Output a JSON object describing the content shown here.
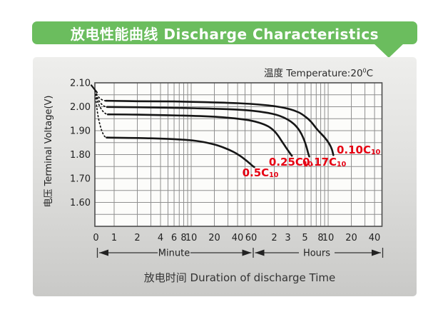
{
  "header": {
    "title": "放电性能曲线 Discharge Characteristics"
  },
  "condition": {
    "text_main": "温度 Temperature:20",
    "degree_sup": "0",
    "unit": "C"
  },
  "segments": {
    "minute": "Minute",
    "hours": "Hours"
  },
  "colors": {
    "banner_green": "#6bbd5e",
    "panel_top": "#eeeeec",
    "panel_bottom": "#c9c9c7",
    "plot_bg": "#fcfcfa",
    "grid": "#8f8f8f",
    "axis": "#4d4d4d",
    "curve": "#161616",
    "accent_red": "#e60012",
    "text": "#2b2b2b"
  },
  "chart_data": {
    "type": "line",
    "title": "放电性能曲线 Discharge Characteristics",
    "condition": "温度 Temperature:20°C",
    "ylabel": "电压 Terminal Voltage(V)",
    "xlabel": "放电时间 Duration of discharge Time",
    "x_scale": "logarithmic discharge time; left segment labeled in minutes (0–60), right segment labeled in hours (1–50)",
    "ylim": [
      1.5,
      2.1
    ],
    "y_ticks": [
      2.1,
      2.0,
      1.9,
      1.8,
      1.7,
      1.6
    ],
    "y_grid_step_v": 0.05,
    "grid": true,
    "legend_position": "red labels on curves",
    "x_ticks": [
      {
        "label": "0",
        "t_min": 0
      },
      {
        "label": "1",
        "t_min": 1
      },
      {
        "label": "2",
        "t_min": 2
      },
      {
        "label": "4",
        "t_min": 4
      },
      {
        "label": "6",
        "t_min": 6
      },
      {
        "label": "8",
        "t_min": 8
      },
      {
        "label": "10",
        "t_min": 10
      },
      {
        "label": "20",
        "t_min": 20
      },
      {
        "label": "40",
        "t_min": 40
      },
      {
        "label": "60",
        "t_min": 60
      },
      {
        "label": "2",
        "t_min": 120
      },
      {
        "label": "3",
        "t_min": 180
      },
      {
        "label": "5",
        "t_min": 300
      },
      {
        "label": "8",
        "t_min": 480
      },
      {
        "label": "10",
        "t_min": 600
      },
      {
        "label": "20",
        "t_min": 1200
      },
      {
        "label": "40",
        "t_min": 2400
      }
    ],
    "x_gridlines_minutes": [
      1,
      2,
      3,
      4,
      5,
      6,
      7,
      8,
      9,
      10,
      20,
      30,
      40,
      50,
      60,
      120,
      180,
      240,
      300,
      360,
      420,
      480,
      540,
      600,
      1200,
      1800,
      2400,
      3000
    ],
    "open_circuit_point": {
      "t_min": 0.57,
      "v": 2.067
    },
    "series": [
      {
        "name": "0.10C10",
        "label": {
          "main": "0.10C",
          "sub": "10"
        },
        "label_anchor": {
          "t_min": 774,
          "v": 1.837
        },
        "points": [
          [
            0.78,
            2.025
          ],
          [
            2,
            2.023
          ],
          [
            6,
            2.022
          ],
          [
            15,
            2.019
          ],
          [
            40,
            2.015
          ],
          [
            90,
            2.007
          ],
          [
            134,
            2.0
          ],
          [
            190,
            1.99
          ],
          [
            250,
            1.976
          ],
          [
            305,
            1.958
          ],
          [
            360,
            1.937
          ],
          [
            435,
            1.904
          ],
          [
            545,
            1.87
          ],
          [
            620,
            1.845
          ],
          [
            670,
            1.822
          ],
          [
            700,
            1.798
          ]
        ]
      },
      {
        "name": "0.17C10",
        "label": {
          "main": "0.17C",
          "sub": "10"
        },
        "label_anchor": {
          "t_min": 278,
          "v": 1.787
        },
        "points": [
          [
            0.81,
            1.999
          ],
          [
            2,
            1.998
          ],
          [
            10,
            1.994
          ],
          [
            30,
            1.99
          ],
          [
            60,
            1.984
          ],
          [
            100,
            1.974
          ],
          [
            140,
            1.962
          ],
          [
            180,
            1.946
          ],
          [
            215,
            1.928
          ],
          [
            245,
            1.908
          ],
          [
            270,
            1.886
          ],
          [
            295,
            1.858
          ],
          [
            315,
            1.83
          ],
          [
            330,
            1.806
          ],
          [
            341,
            1.792
          ]
        ]
      },
      {
        "name": "0.25C10",
        "label": {
          "main": "0.25C",
          "sub": "10"
        },
        "label_anchor": {
          "t_min": 102,
          "v": 1.787
        },
        "points": [
          [
            0.83,
            1.968
          ],
          [
            2,
            1.967
          ],
          [
            10,
            1.962
          ],
          [
            25,
            1.956
          ],
          [
            50,
            1.946
          ],
          [
            75,
            1.934
          ],
          [
            100,
            1.918
          ],
          [
            120,
            1.898
          ],
          [
            135,
            1.878
          ],
          [
            150,
            1.856
          ],
          [
            165,
            1.836
          ],
          [
            180,
            1.818
          ],
          [
            195,
            1.802
          ],
          [
            203,
            1.795
          ]
        ]
      },
      {
        "name": "0.5C10",
        "label": {
          "main": "0.5C",
          "sub": "10"
        },
        "label_anchor": {
          "t_min": 46,
          "v": 1.742
        },
        "points": [
          [
            0.8,
            1.871
          ],
          [
            3,
            1.868
          ],
          [
            8,
            1.862
          ],
          [
            13,
            1.855
          ],
          [
            20,
            1.842
          ],
          [
            27,
            1.828
          ],
          [
            35,
            1.812
          ],
          [
            43,
            1.795
          ],
          [
            51,
            1.777
          ],
          [
            58,
            1.762
          ],
          [
            63,
            1.752
          ],
          [
            66,
            1.748
          ]
        ]
      }
    ]
  }
}
